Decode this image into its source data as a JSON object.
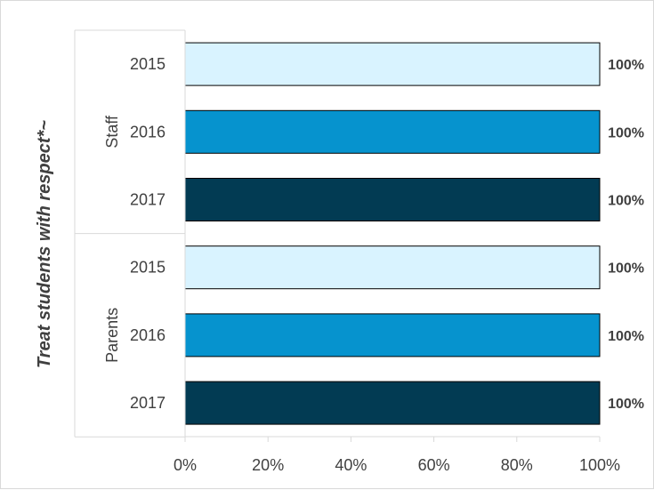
{
  "chart_data": {
    "type": "bar",
    "orientation": "horizontal",
    "ylabel": "Treat students with respect*~",
    "groups": [
      {
        "name": "Staff",
        "categories": [
          "2015",
          "2016",
          "2017"
        ],
        "values": [
          100,
          100,
          100
        ],
        "data_labels": [
          "100%",
          "100%",
          "100%"
        ]
      },
      {
        "name": "Parents",
        "categories": [
          "2015",
          "2016",
          "2017"
        ],
        "values": [
          100,
          100,
          100
        ],
        "data_labels": [
          "100%",
          "100%",
          "100%"
        ]
      }
    ],
    "colors_by_year": {
      "2015": "#d9f3ff",
      "2016": "#0693ce",
      "2017": "#023b53"
    },
    "xlim": [
      0,
      100
    ],
    "x_ticks": [
      "0%",
      "20%",
      "40%",
      "60%",
      "80%",
      "100%"
    ],
    "grid": false,
    "legend": "none"
  }
}
